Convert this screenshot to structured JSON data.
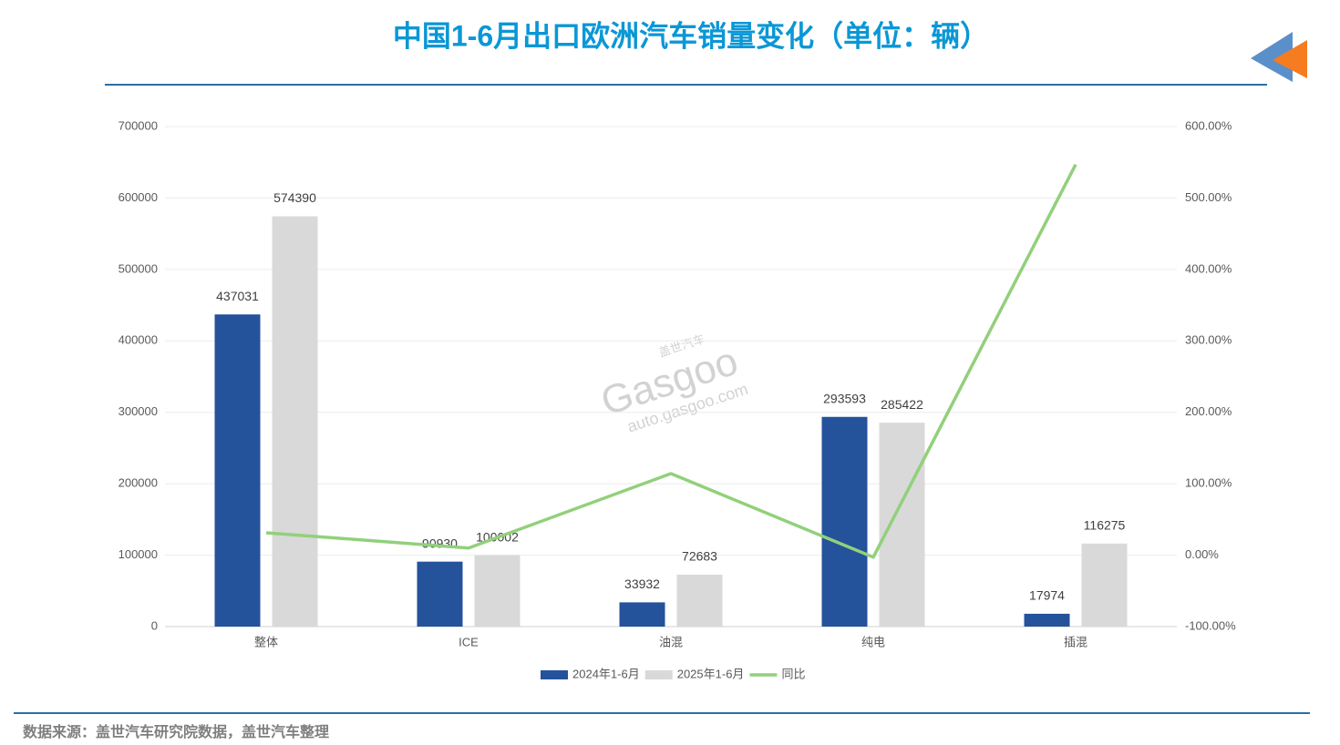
{
  "chart_data": {
    "type": "bar",
    "title": "中国1-6月出口欧洲汽车销量变化（单位：辆）",
    "source": "数据来源：盖世汽车研究院数据，盖世汽车整理",
    "watermark": [
      "盖世汽车",
      "Gasgoo",
      "auto.gasgoo.com"
    ],
    "categories": [
      "整体",
      "ICE",
      "油混",
      "纯电",
      "插混"
    ],
    "series": [
      {
        "name": "2024年1-6月",
        "color": "#24529b",
        "values": [
          437031,
          90930,
          33932,
          293593,
          17974
        ]
      },
      {
        "name": "2025年1-6月",
        "color": "#d9d9d9",
        "values": [
          574390,
          100002,
          72683,
          285422,
          116275
        ]
      },
      {
        "name": "同比",
        "color": "#92d07c",
        "type": "line",
        "axis": "y2",
        "values": [
          31.4,
          10.0,
          114.2,
          -2.8,
          546.9
        ]
      }
    ],
    "ylim": [
      0,
      700000
    ],
    "yticks": [
      0,
      100000,
      200000,
      300000,
      400000,
      500000,
      600000,
      700000
    ],
    "y2lim": [
      -100,
      600
    ],
    "y2ticks": [
      {
        "value": -100,
        "label": "-100.00%"
      },
      {
        "value": 0,
        "label": "0.00%"
      },
      {
        "value": 100,
        "label": "100.00%"
      },
      {
        "value": 200,
        "label": "200.00%"
      },
      {
        "value": 300,
        "label": "300.00%"
      },
      {
        "value": 400,
        "label": "400.00%"
      },
      {
        "value": 500,
        "label": "500.00%"
      },
      {
        "value": 600,
        "label": "600.00%"
      }
    ],
    "grid": true
  }
}
